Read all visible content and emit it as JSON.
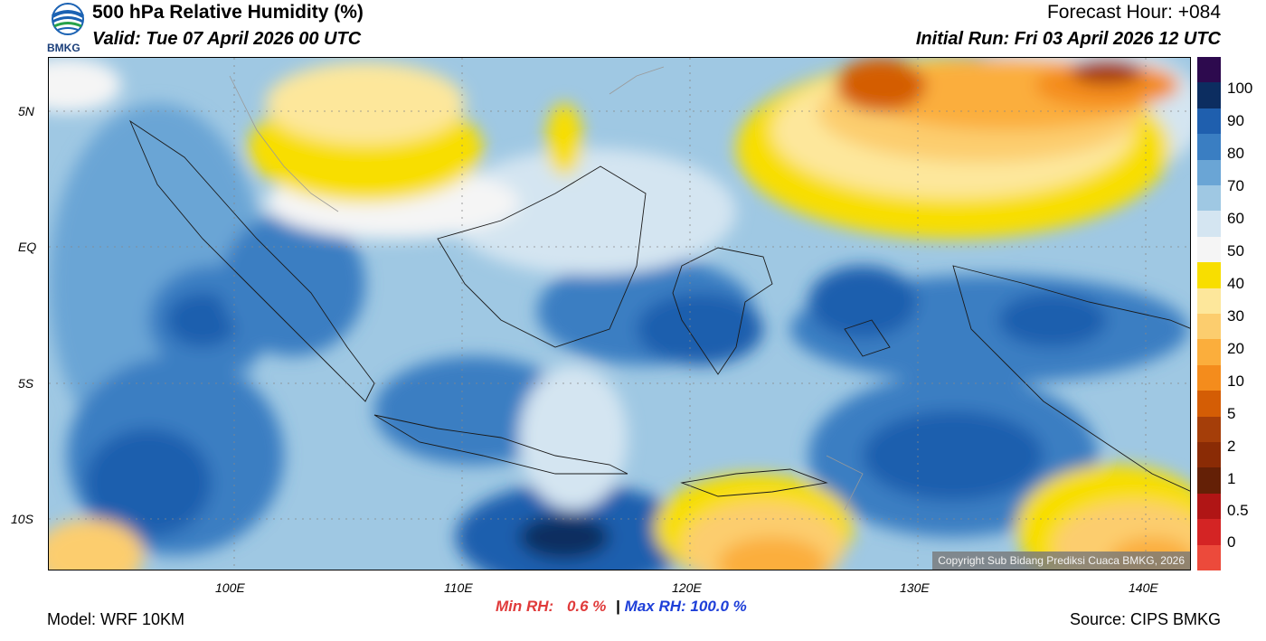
{
  "header": {
    "logo_text": "BMKG",
    "title": "500 hPa Relative Humidity (%)",
    "valid": "Valid: Tue 07 April 2026 00 UTC",
    "forecast_hour": "Forecast Hour: +084",
    "initial_run": "Initial Run: Fri 03 April 2026 12 UTC"
  },
  "map": {
    "lat_labels": [
      "5N",
      "EQ",
      "5S",
      "10S"
    ],
    "lon_labels": [
      "100E",
      "110E",
      "120E",
      "130E",
      "140E"
    ],
    "copyright": "Copyright Sub Bidang Prediksi Cuaca BMKG, 2026"
  },
  "colorbar": {
    "labels": [
      "100",
      "90",
      "80",
      "70",
      "60",
      "50",
      "40",
      "30",
      "20",
      "10",
      "5",
      "2",
      "1",
      "0.5",
      "0"
    ],
    "colors": [
      "#2d0a4e",
      "#0c2d60",
      "#1f5fae",
      "#3a7ec2",
      "#6aa5d5",
      "#9fc8e3",
      "#d4e5f1",
      "#f5f5f5",
      "#f8de00",
      "#fde79b",
      "#fccd6e",
      "#fbae3c",
      "#f48c1c",
      "#d45d05",
      "#a53e09",
      "#8a2b05",
      "#642006",
      "#b01515",
      "#d42424",
      "#ec4a3b"
    ]
  },
  "footer": {
    "model": "Model: WRF 10KM",
    "min_rh_label": "Min RH:",
    "min_rh_value": "0.6 %",
    "separator": "|",
    "max_rh_label": "Max RH:",
    "max_rh_value": "100.0 %",
    "source": "Source: CIPS BMKG"
  }
}
